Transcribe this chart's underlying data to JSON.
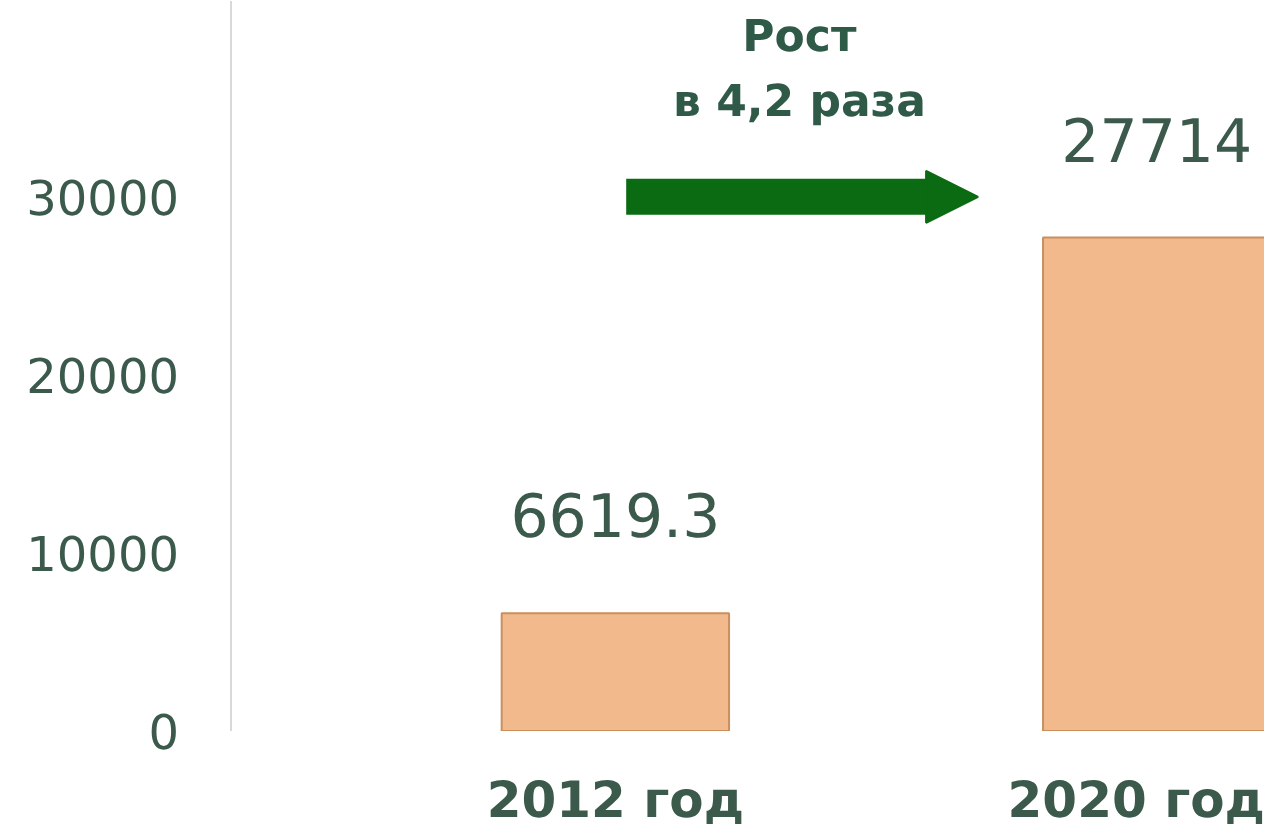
{
  "chart_data": {
    "type": "bar",
    "categories": [
      "2012 год",
      "2020 год"
    ],
    "values": [
      6619.3,
      27714
    ],
    "color": "#f2b98c",
    "data_labels": true,
    "ylim": [
      0,
      41000
    ],
    "yticks": [
      0,
      10000,
      20000,
      30000
    ],
    "grid": false,
    "annotations": [
      "Рост\nв 4,2 раза"
    ]
  }
}
